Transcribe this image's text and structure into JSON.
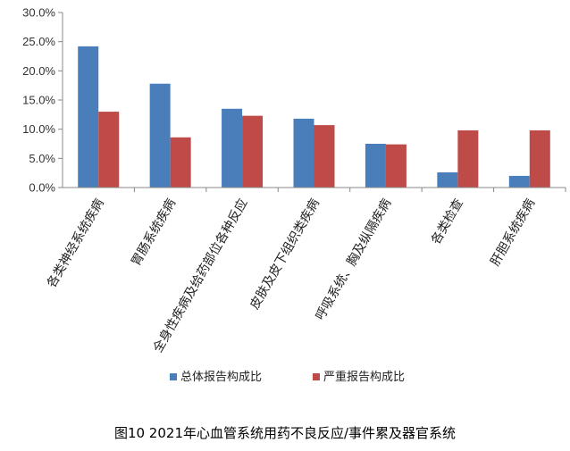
{
  "chart_data": {
    "type": "bar",
    "categories": [
      "各类神经系统疾病",
      "胃肠系统疾病",
      "全身性疾病及给药部位各种反应",
      "皮肤及皮下组织类疾病",
      "呼吸系统、胸及纵隔疾病",
      "各类检查",
      "肝胆系统疾病"
    ],
    "series": [
      {
        "name": "总体报告构成比",
        "color": "#4a7ebb",
        "values": [
          24.2,
          17.8,
          13.5,
          11.8,
          7.5,
          2.6,
          2.0
        ]
      },
      {
        "name": "严重报告构成比",
        "color": "#be4b48",
        "values": [
          13.0,
          8.6,
          12.3,
          10.7,
          7.4,
          9.8,
          9.8
        ]
      }
    ],
    "ylim": [
      0,
      30
    ],
    "yticks": [
      "0.0%",
      "5.0%",
      "10.0%",
      "15.0%",
      "20.0%",
      "25.0%",
      "30.0%"
    ],
    "legend_position": "bottom",
    "grid": false
  },
  "caption": "图10  2021年心血管系统用药不良反应/事件累及器官系统"
}
